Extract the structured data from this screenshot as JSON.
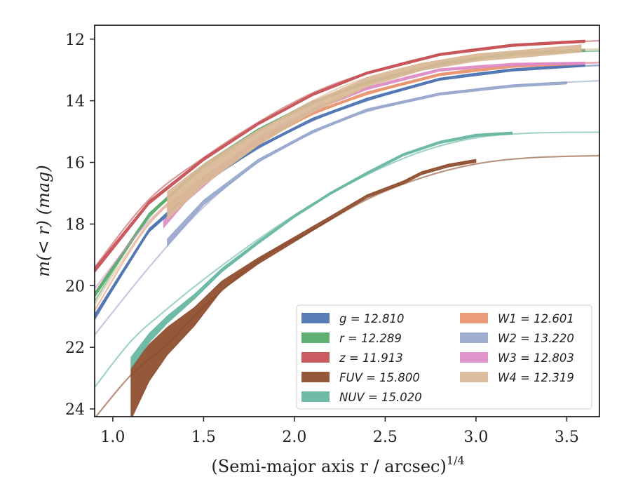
{
  "chart_data": {
    "type": "line",
    "title": "",
    "xlabel": "(Semi-major axis r / arcsec)",
    "xlabel_sup": "1/4",
    "ylabel": "m(< r) (mag)",
    "xlim": [
      0.9,
      3.68
    ],
    "ylim": [
      24.25,
      11.55
    ],
    "y_inverted": true,
    "grid": false,
    "legend_position": "lower-right",
    "x_ticks": [
      1.0,
      1.5,
      2.0,
      2.5,
      3.0,
      3.5
    ],
    "x_tick_labels": [
      "1.0",
      "1.5",
      "2.0",
      "2.5",
      "3.0",
      "3.5"
    ],
    "y_ticks": [
      12,
      14,
      16,
      18,
      20,
      22,
      24
    ],
    "y_tick_labels": [
      "12",
      "14",
      "16",
      "18",
      "20",
      "22",
      "24"
    ],
    "series": [
      {
        "name": "g = 12.810",
        "color": "#4c72b0",
        "fit": {
          "x": [
            0.9,
            1.2,
            1.5,
            1.8,
            2.1,
            2.4,
            2.8,
            3.2,
            3.68
          ],
          "y": [
            21.1,
            18.25,
            16.7,
            15.55,
            14.65,
            14.0,
            13.3,
            13.0,
            12.85
          ]
        },
        "data": {
          "x": [
            0.9,
            1.2,
            1.5,
            1.8,
            2.1,
            2.4,
            2.8,
            3.2,
            3.6
          ],
          "y": [
            21.0,
            18.2,
            16.65,
            15.5,
            14.6,
            13.95,
            13.3,
            13.0,
            12.85
          ],
          "err": [
            0.08,
            0.06,
            0.05,
            0.04,
            0.04,
            0.04,
            0.04,
            0.04,
            0.04
          ]
        }
      },
      {
        "name": "r = 12.289",
        "color": "#55a868",
        "fit": {
          "x": [
            0.9,
            1.2,
            1.5,
            1.8,
            2.1,
            2.4,
            2.8,
            3.2,
            3.68
          ],
          "y": [
            20.5,
            17.8,
            16.2,
            15.0,
            14.1,
            13.45,
            12.85,
            12.5,
            12.38
          ]
        },
        "data": {
          "x": [
            0.9,
            1.2,
            1.5,
            1.8,
            2.1,
            2.4,
            2.8,
            3.2,
            3.6
          ],
          "y": [
            20.3,
            17.7,
            16.1,
            14.95,
            14.05,
            13.4,
            12.8,
            12.48,
            12.36
          ],
          "err": [
            0.08,
            0.06,
            0.05,
            0.04,
            0.04,
            0.04,
            0.04,
            0.04,
            0.04
          ]
        }
      },
      {
        "name": "z = 11.913",
        "color": "#c44e52",
        "fit": {
          "x": [
            0.9,
            1.2,
            1.5,
            1.8,
            2.1,
            2.4,
            2.8,
            3.2,
            3.68
          ],
          "y": [
            19.4,
            17.2,
            15.85,
            14.7,
            13.75,
            13.1,
            12.5,
            12.2,
            12.05
          ]
        },
        "data": {
          "x": [
            0.9,
            1.2,
            1.5,
            1.8,
            2.1,
            2.4,
            2.8,
            3.2,
            3.6
          ],
          "y": [
            19.5,
            17.3,
            15.9,
            14.75,
            13.8,
            13.1,
            12.5,
            12.2,
            12.07
          ],
          "err": [
            0.08,
            0.06,
            0.05,
            0.04,
            0.04,
            0.04,
            0.04,
            0.04,
            0.04
          ]
        }
      },
      {
        "name": "FUV = 15.800",
        "color": "#8c4a2a",
        "fit": {
          "x": [
            0.9,
            1.1,
            1.3,
            1.5,
            1.8,
            2.1,
            2.4,
            2.7,
            3.0,
            3.3,
            3.68
          ],
          "y": [
            24.3,
            22.9,
            21.9,
            20.7,
            19.2,
            18.2,
            17.2,
            16.5,
            16.05,
            15.85,
            15.78
          ]
        },
        "data": {
          "x": [
            1.1,
            1.2,
            1.3,
            1.45,
            1.6,
            1.8,
            2.0,
            2.2,
            2.4,
            2.6,
            2.7,
            2.85,
            3.0
          ],
          "y": [
            23.5,
            22.5,
            21.8,
            21.0,
            20.0,
            19.2,
            18.5,
            17.8,
            17.1,
            16.65,
            16.35,
            16.1,
            15.95
          ],
          "err": [
            0.85,
            0.6,
            0.45,
            0.3,
            0.15,
            0.1,
            0.08,
            0.06,
            0.05,
            0.05,
            0.05,
            0.05,
            0.05
          ]
        }
      },
      {
        "name": "NUV = 15.020",
        "color": "#64b5a0",
        "fit": {
          "x": [
            0.9,
            1.1,
            1.3,
            1.5,
            1.8,
            2.1,
            2.4,
            2.7,
            3.0,
            3.3,
            3.68
          ],
          "y": [
            23.3,
            21.8,
            20.75,
            19.8,
            18.5,
            17.35,
            16.4,
            15.65,
            15.2,
            15.05,
            15.02
          ]
        },
        "data": {
          "x": [
            1.1,
            1.2,
            1.3,
            1.45,
            1.6,
            1.8,
            2.0,
            2.2,
            2.4,
            2.6,
            2.8,
            3.0,
            3.2
          ],
          "y": [
            22.5,
            21.7,
            21.1,
            20.35,
            19.5,
            18.6,
            17.75,
            17.0,
            16.35,
            15.75,
            15.35,
            15.12,
            15.05
          ],
          "err": [
            0.18,
            0.15,
            0.12,
            0.08,
            0.06,
            0.05,
            0.04,
            0.04,
            0.04,
            0.04,
            0.04,
            0.04,
            0.04
          ]
        }
      },
      {
        "name": "W1 = 12.601",
        "color": "#e8926b",
        "fit": {
          "x": [
            0.9,
            1.2,
            1.5,
            1.8,
            2.1,
            2.4,
            2.8,
            3.2,
            3.68
          ],
          "y": [
            20.8,
            18.0,
            16.55,
            15.4,
            14.45,
            13.8,
            13.15,
            12.85,
            12.75
          ]
        },
        "data": {
          "x": [
            1.3,
            1.5,
            1.8,
            2.1,
            2.4,
            2.8,
            3.2,
            3.6
          ],
          "y": [
            17.5,
            16.5,
            15.35,
            14.4,
            13.75,
            13.15,
            12.88,
            12.78
          ],
          "err": [
            0.06,
            0.05,
            0.04,
            0.04,
            0.04,
            0.04,
            0.04,
            0.04
          ]
        }
      },
      {
        "name": "W2 = 13.220",
        "color": "#97a6cc",
        "fit": {
          "x": [
            0.9,
            1.2,
            1.5,
            1.8,
            2.1,
            2.4,
            2.8,
            3.2,
            3.68
          ],
          "y": [
            21.6,
            19.4,
            17.45,
            16.0,
            15.05,
            14.35,
            13.8,
            13.5,
            13.35
          ]
        },
        "data": {
          "x": [
            1.3,
            1.5,
            1.8,
            2.1,
            2.4,
            2.8,
            3.2,
            3.5
          ],
          "y": [
            18.6,
            17.3,
            15.95,
            15.0,
            14.3,
            13.78,
            13.52,
            13.42
          ],
          "err": [
            0.12,
            0.08,
            0.05,
            0.04,
            0.04,
            0.04,
            0.04,
            0.04
          ]
        }
      },
      {
        "name": "W3 = 12.803",
        "color": "#dd8cc5",
        "fit": {
          "x": [
            0.9,
            1.2,
            1.5,
            1.8,
            2.1,
            2.4,
            2.8,
            3.2,
            3.68
          ],
          "y": [
            20.1,
            17.9,
            16.5,
            15.25,
            14.3,
            13.6,
            13.0,
            12.82,
            12.78
          ]
        },
        "data": {
          "x": [
            1.28,
            1.4,
            1.55,
            1.8,
            2.1,
            2.4,
            2.8,
            3.2,
            3.6
          ],
          "y": [
            18.0,
            17.2,
            16.45,
            15.25,
            14.3,
            13.6,
            13.0,
            12.82,
            12.78
          ],
          "err": [
            0.12,
            0.1,
            0.08,
            0.05,
            0.04,
            0.04,
            0.04,
            0.04,
            0.04
          ]
        }
      },
      {
        "name": "W4 = 12.319",
        "color": "#d9b896",
        "fit": {
          "x": [
            0.9,
            1.2,
            1.5,
            1.8,
            2.1,
            2.4,
            2.8,
            3.2,
            3.68
          ],
          "y": [
            20.6,
            17.95,
            16.35,
            15.05,
            14.0,
            13.25,
            12.7,
            12.42,
            12.32
          ]
        },
        "data": {
          "x": [
            1.3,
            1.5,
            1.8,
            2.1,
            2.4,
            2.7,
            3.0,
            3.3,
            3.58
          ],
          "y": [
            17.4,
            16.4,
            15.2,
            14.2,
            13.4,
            12.9,
            12.6,
            12.45,
            12.3
          ],
          "err": [
            0.45,
            0.35,
            0.25,
            0.18,
            0.15,
            0.12,
            0.12,
            0.12,
            0.12
          ]
        }
      }
    ]
  }
}
